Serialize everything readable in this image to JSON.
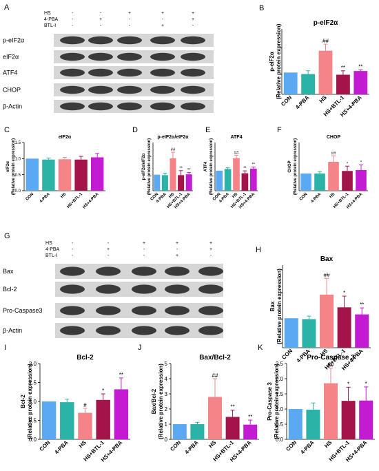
{
  "figure": {
    "treatment_rows": [
      "HS",
      "4-PBA",
      "BTL-Ⅰ"
    ],
    "conditions": [
      {
        "HS": "-",
        "4-PBA": "-",
        "BTL-Ⅰ": "-"
      },
      {
        "HS": "-",
        "4-PBA": "+",
        "BTL-Ⅰ": "-"
      },
      {
        "HS": "+",
        "4-PBA": "-",
        "BTL-Ⅰ": "-"
      },
      {
        "HS": "+",
        "4-PBA": "-",
        "BTL-Ⅰ": "+"
      },
      {
        "HS": "+",
        "4-PBA": "+",
        "BTL-Ⅰ": "-"
      }
    ],
    "colors": [
      "#5aa9f2",
      "#2ab3a6",
      "#f48487",
      "#a3144b",
      "#c21bd1"
    ]
  },
  "blots": [
    {
      "panel": "A",
      "rows": [
        "p-eIF2α",
        "eIF2α",
        "ATF4",
        "CHOP",
        "β-Actin"
      ]
    },
    {
      "panel": "G",
      "rows": [
        "Bax",
        "Bcl-2",
        "Pro-Caspase3",
        "β-Actin"
      ]
    }
  ],
  "chart_data": [
    {
      "panel": "B",
      "type": "bar",
      "title": "p-eIF2α",
      "ylabel_top": "p-eIF2α",
      "ylabel_bottom": "(Relative protein expression)",
      "categories": [
        "CON",
        "4-PBA",
        "HS",
        "HS+BTL-1",
        "HS+4-PBA"
      ],
      "values": [
        1.0,
        0.93,
        2.0,
        0.9,
        1.07
      ],
      "errors": [
        0,
        0.15,
        0.3,
        0.18,
        0.05
      ],
      "significance": [
        "",
        "",
        "##",
        "**",
        "**"
      ],
      "ylim": [
        0,
        3
      ],
      "yticks": [],
      "grid": false
    },
    {
      "panel": "C",
      "type": "bar",
      "title": "eIF2α",
      "ylabel_top": "eIF2α",
      "ylabel_bottom": "(Relative protein expression)",
      "categories": [
        "CON",
        "4-PBA",
        "HS",
        "HS+BTL-1",
        "HS+4-PBA"
      ],
      "values": [
        1.0,
        0.97,
        0.98,
        0.97,
        1.04
      ],
      "errors": [
        0,
        0.05,
        0.06,
        0.1,
        0.12
      ],
      "significance": [
        "",
        "",
        "",
        "",
        ""
      ],
      "ylim": [
        0,
        1.5
      ],
      "yticks": [
        "0.0",
        "0.5",
        "1.0",
        "1.5"
      ],
      "grid": false
    },
    {
      "panel": "D",
      "type": "bar",
      "title": "p-eIF2α/eIF2α",
      "ylabel_top": "p-eIF2α/eIF2α",
      "ylabel_bottom": "(Relative protein expression)",
      "categories": [
        "CON",
        "4-PBA",
        "HS",
        "HS+BTL-1",
        "HS+4-PBA"
      ],
      "values": [
        1.0,
        0.97,
        2.02,
        0.97,
        1.02
      ],
      "errors": [
        0,
        0.12,
        0.38,
        0.28,
        0.12
      ],
      "significance": [
        "",
        "",
        "##",
        "**",
        "**"
      ],
      "ylim": [
        0,
        3
      ],
      "yticks": [],
      "grid": false
    },
    {
      "panel": "E",
      "type": "bar",
      "title": "ATF4",
      "ylabel_top": "ATF4",
      "ylabel_bottom": "(Relative protein expression)",
      "categories": [
        "CON",
        "4-PBA",
        "HS",
        "HS+BTL-1",
        "HS+4-PBA"
      ],
      "values": [
        1.0,
        1.08,
        1.62,
        0.87,
        1.1
      ],
      "errors": [
        0,
        0.06,
        0.15,
        0.12,
        0.08
      ],
      "significance": [
        "",
        "",
        "##",
        "**",
        "**"
      ],
      "ylim": [
        0,
        2.4
      ],
      "yticks": [],
      "grid": false
    },
    {
      "panel": "F",
      "type": "bar",
      "title": "CHOP",
      "ylabel_top": "CHOP",
      "ylabel_bottom": "(Relative protein expression)",
      "categories": [
        "CON",
        "4-PBA",
        "HS",
        "HS+BTL-1",
        "HS+4-PBA"
      ],
      "values": [
        1.0,
        1.0,
        1.68,
        1.15,
        1.2
      ],
      "errors": [
        0,
        0.12,
        0.35,
        0.28,
        0.3
      ],
      "significance": [
        "",
        "",
        "##",
        "*",
        "*"
      ],
      "ylim": [
        0,
        2.8
      ],
      "yticks": [],
      "grid": false
    },
    {
      "panel": "H",
      "type": "bar",
      "title": "Bax",
      "ylabel_top": "Bax",
      "ylabel_bottom": "(Relative protein expression)",
      "categories": [
        "CON",
        "4-PBA",
        "HS",
        "HS+BTL-1",
        "HS+4-PBA"
      ],
      "values": [
        1.0,
        0.97,
        1.8,
        1.37,
        1.13
      ],
      "errors": [
        0,
        0.1,
        0.55,
        0.38,
        0.22
      ],
      "significance": [
        "",
        "",
        "##",
        "*",
        "**"
      ],
      "ylim": [
        0,
        2.8
      ],
      "yticks": [],
      "grid": false
    },
    {
      "panel": "I",
      "type": "bar",
      "title": "Bcl-2",
      "ylabel_top": "Bcl-2",
      "ylabel_bottom": "(Relative protein expression)",
      "categories": [
        "CON",
        "4-PBA",
        "HS",
        "HS+BTL-1",
        "HS+4-PBA"
      ],
      "values": [
        1.0,
        0.98,
        0.7,
        1.04,
        1.32
      ],
      "errors": [
        0,
        0.08,
        0.12,
        0.16,
        0.3
      ],
      "significance": [
        "",
        "",
        "#",
        "*",
        "**"
      ],
      "ylim": [
        0,
        2.0
      ],
      "yticks": [
        "0.0",
        "0.5",
        "1.0",
        "1.5",
        "2.0"
      ],
      "grid": false
    },
    {
      "panel": "J",
      "type": "bar",
      "title": "Bax/Bcl-2",
      "ylabel_top": "Bax/Bcl-2",
      "ylabel_bottom": "(Relative protein expression)",
      "categories": [
        "CON",
        "4-PBA",
        "HS",
        "HS+BTL-1",
        "HS+4-PBA"
      ],
      "values": [
        1.0,
        1.0,
        2.8,
        1.48,
        0.97
      ],
      "errors": [
        0,
        0.12,
        1.2,
        0.45,
        0.3
      ],
      "significance": [
        "",
        "",
        "##",
        "**",
        "**"
      ],
      "ylim": [
        0,
        5
      ],
      "yticks": [
        "0",
        "1",
        "2",
        "3",
        "4",
        "5"
      ],
      "grid": false
    },
    {
      "panel": "K",
      "type": "bar",
      "title": "Pro-Caspase 3",
      "ylabel_top": "Pro-Caspase 3",
      "ylabel_bottom": "(Relative protein expression)",
      "categories": [
        "CON",
        "4-PBA",
        "HS",
        "HS+BTL-1",
        "HS+4-PBA"
      ],
      "values": [
        1.0,
        0.98,
        1.85,
        1.27,
        1.28
      ],
      "errors": [
        0,
        0.22,
        0.5,
        0.45,
        0.45
      ],
      "significance": [
        "",
        "",
        "##",
        "*",
        "*"
      ],
      "ylim": [
        0,
        2.5
      ],
      "yticks": [
        "0.0",
        "0.5",
        "1.0",
        "1.5",
        "2.0",
        "2.5"
      ],
      "grid": false
    }
  ]
}
